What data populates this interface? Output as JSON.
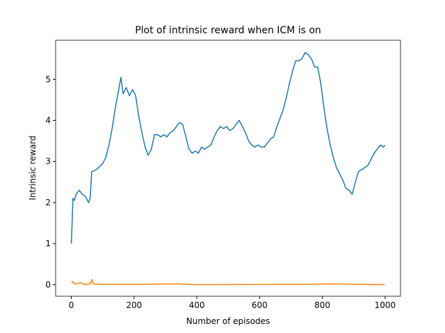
{
  "chart_data": {
    "type": "line",
    "title": "Plot of intrinsic reward when ICM is on",
    "x_label": "Number of episodes",
    "y_label": "Intrinsic reward",
    "xlim": [
      -50,
      1049
    ],
    "ylim": [
      -0.28,
      5.95
    ],
    "xticks": [
      0,
      200,
      400,
      600,
      800,
      1000
    ],
    "yticks": [
      0,
      1,
      2,
      3,
      4,
      5
    ],
    "grid": false,
    "series": [
      {
        "color": "#1f77b4",
        "x": [
          0,
          3,
          5,
          10,
          15,
          25,
          35,
          45,
          55,
          60,
          65,
          80,
          100,
          110,
          120,
          130,
          140,
          150,
          158,
          165,
          175,
          185,
          195,
          205,
          215,
          225,
          235,
          245,
          255,
          265,
          275,
          285,
          295,
          305,
          315,
          325,
          335,
          345,
          355,
          365,
          375,
          385,
          395,
          405,
          415,
          425,
          435,
          445,
          455,
          465,
          475,
          485,
          495,
          505,
          515,
          525,
          535,
          545,
          555,
          565,
          575,
          585,
          595,
          605,
          615,
          625,
          635,
          645,
          655,
          665,
          675,
          685,
          695,
          705,
          715,
          725,
          735,
          745,
          755,
          765,
          775,
          785,
          795,
          805,
          815,
          825,
          835,
          845,
          855,
          865,
          875,
          885,
          895,
          905,
          915,
          925,
          935,
          945,
          955,
          965,
          975,
          985,
          995,
          999
        ],
        "values": [
          1.0,
          1.6,
          2.1,
          2.05,
          2.2,
          2.3,
          2.2,
          2.15,
          2.0,
          2.1,
          2.75,
          2.8,
          2.95,
          3.1,
          3.4,
          3.8,
          4.3,
          4.7,
          5.05,
          4.65,
          4.8,
          4.6,
          4.75,
          4.6,
          4.1,
          3.7,
          3.35,
          3.15,
          3.3,
          3.65,
          3.65,
          3.6,
          3.65,
          3.6,
          3.7,
          3.75,
          3.85,
          3.95,
          3.9,
          3.6,
          3.3,
          3.2,
          3.25,
          3.2,
          3.35,
          3.3,
          3.35,
          3.4,
          3.6,
          3.75,
          3.85,
          3.8,
          3.85,
          3.75,
          3.8,
          3.9,
          4.0,
          3.85,
          3.7,
          3.5,
          3.4,
          3.35,
          3.4,
          3.35,
          3.35,
          3.45,
          3.55,
          3.6,
          3.85,
          4.05,
          4.25,
          4.55,
          4.9,
          5.2,
          5.45,
          5.45,
          5.5,
          5.65,
          5.6,
          5.5,
          5.3,
          5.3,
          4.9,
          4.3,
          3.8,
          3.4,
          3.1,
          2.85,
          2.7,
          2.55,
          2.35,
          2.3,
          2.2,
          2.5,
          2.75,
          2.8,
          2.85,
          2.9,
          3.05,
          3.2,
          3.3,
          3.4,
          3.35,
          3.4
        ]
      },
      {
        "color": "#ff7f0e",
        "x": [
          0,
          5,
          10,
          20,
          30,
          40,
          60,
          66,
          70,
          100,
          200,
          340,
          400,
          650,
          750,
          830,
          999
        ],
        "values": [
          0.05,
          0.08,
          0.02,
          0.03,
          0.05,
          0.01,
          0.02,
          0.13,
          0.02,
          0.01,
          0.01,
          0.02,
          0.0,
          0.01,
          0.01,
          0.02,
          0.0
        ]
      }
    ]
  }
}
